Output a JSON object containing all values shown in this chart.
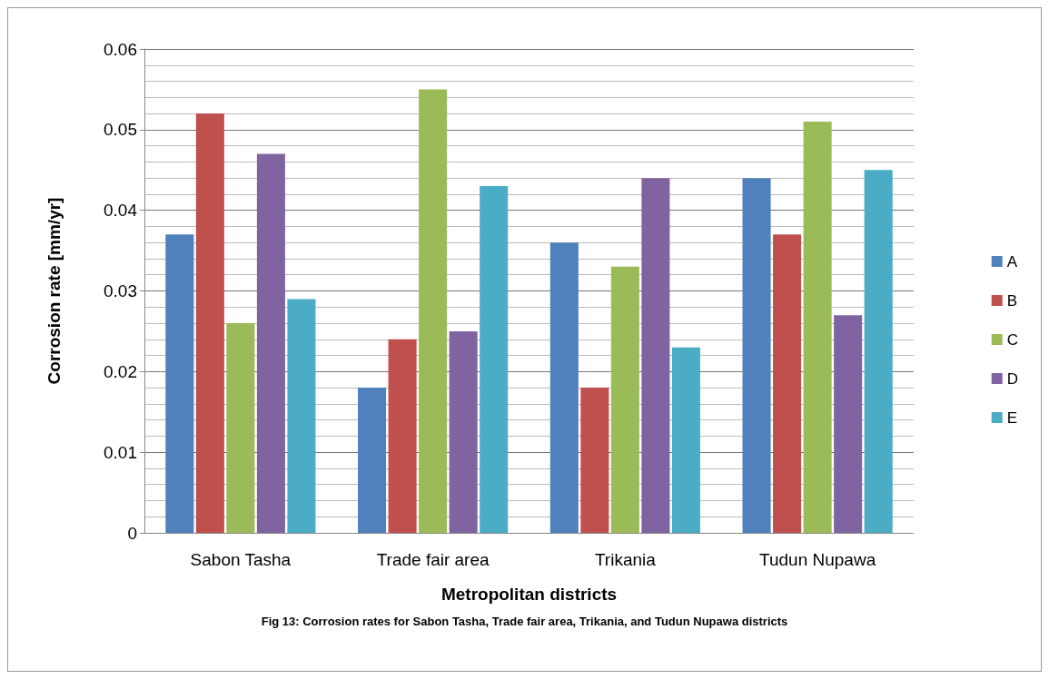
{
  "chart_data": {
    "type": "bar",
    "xlabel": "Metropolitan districts",
    "ylabel": "Corrosion rate [mm/yr]",
    "annotations": [
      "Fig 13: Corrosion rates for Sabon Tasha, Trade fair area, Trikania, and Tudun Nupawa districts"
    ],
    "categories": [
      "Sabon Tasha",
      "Trade fair area",
      "Trikania",
      "Tudun Nupawa"
    ],
    "series": [
      {
        "name": "A",
        "color": "#4f81bd",
        "values": [
          0.037,
          0.018,
          0.036,
          0.044
        ]
      },
      {
        "name": "B",
        "color": "#c0504d",
        "values": [
          0.052,
          0.024,
          0.018,
          0.037
        ]
      },
      {
        "name": "C",
        "color": "#9bbb59",
        "values": [
          0.026,
          0.055,
          0.033,
          0.051
        ]
      },
      {
        "name": "D",
        "color": "#8064a2",
        "values": [
          0.047,
          0.025,
          0.044,
          0.027
        ]
      },
      {
        "name": "E",
        "color": "#4bacc6",
        "values": [
          0.029,
          0.043,
          0.023,
          0.045
        ]
      }
    ],
    "ylim": [
      0,
      0.06
    ],
    "yticks": [
      0,
      0.01,
      0.02,
      0.03,
      0.04,
      0.05,
      0.06
    ],
    "grid": "y",
    "legend": "right"
  }
}
